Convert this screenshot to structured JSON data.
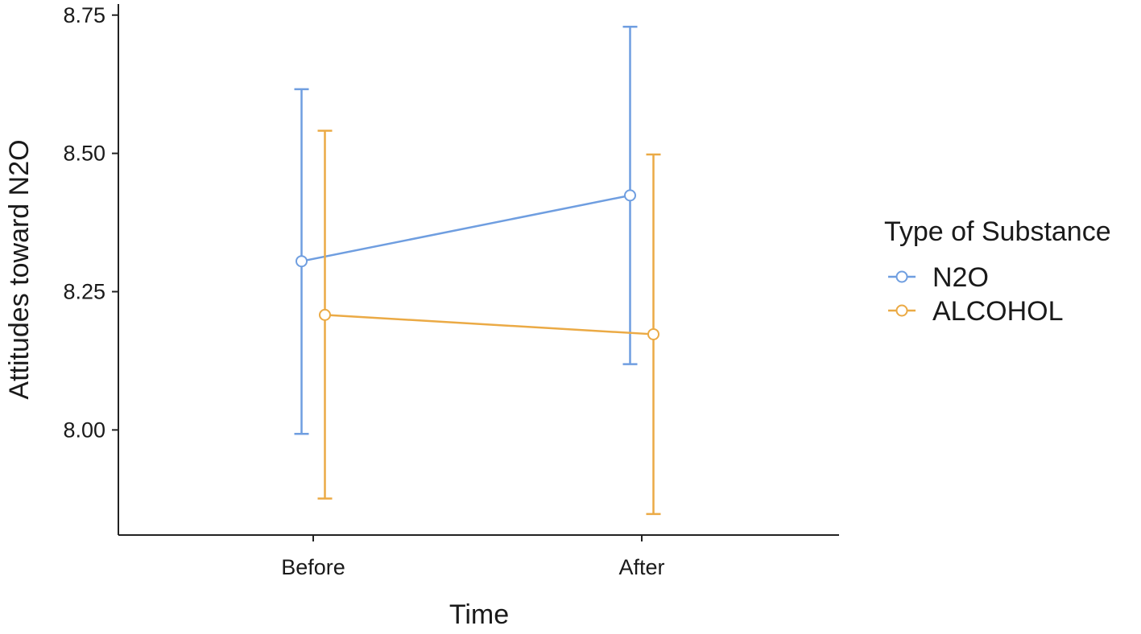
{
  "chart_data": {
    "type": "line",
    "title": "",
    "xlabel": "Time",
    "ylabel": "Attitudes toward N2O",
    "categories": [
      "Before",
      "After"
    ],
    "ylim": [
      7.81,
      8.77
    ],
    "yticks": [
      8.0,
      8.25,
      8.5,
      8.75
    ],
    "ytick_labels": [
      "8.00",
      "8.25",
      "8.50",
      "8.75"
    ],
    "grid": false,
    "legend": {
      "title": "Type of Substance",
      "position": "right"
    },
    "series": [
      {
        "name": "N2O",
        "color": "#6f9ee0",
        "values": [
          8.305,
          8.424
        ],
        "error_low": [
          7.993,
          8.119
        ],
        "error_high": [
          8.616,
          8.729
        ]
      },
      {
        "name": "ALCOHOL",
        "color": "#ebaa45",
        "values": [
          8.208,
          8.173
        ],
        "error_low": [
          7.876,
          7.848
        ],
        "error_high": [
          8.541,
          8.498
        ]
      }
    ]
  }
}
